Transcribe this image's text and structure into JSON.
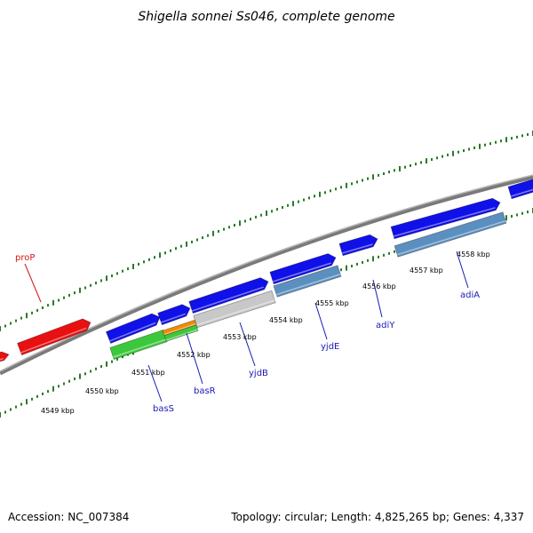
{
  "title": "Shigella sonnei Ss046, complete genome",
  "footer": {
    "accession": "Accession: NC_007384",
    "summary": "Topology: circular; Length: 4,825,265 bp; Genes: 4,337"
  },
  "colors": {
    "forward_gene": "#1010e8",
    "rrna_or_red": "#e81010",
    "steelblue_gene": "#5b8fc0",
    "grey_gene": "#c8c8c8",
    "green_gene": "#3cc83c",
    "orange_gene": "#f08c00",
    "tick": "#2a7a2a",
    "backbone": "#8c8c8c",
    "label_blue": "#1a1ab4",
    "label_red": "#d21414"
  },
  "scale_labels": [
    "4549 kbp",
    "4550 kbp",
    "4551 kbp",
    "4552 kbp",
    "4553 kbp",
    "4554 kbp",
    "4555 kbp",
    "4556 kbp",
    "4557 kbp",
    "4558 kbp"
  ],
  "gene_labels": [
    {
      "name": "proP",
      "color": "label_red"
    },
    {
      "name": "basS",
      "color": "label_blue"
    },
    {
      "name": "basR",
      "color": "label_blue"
    },
    {
      "name": "yjdB",
      "color": "label_blue"
    },
    {
      "name": "yjdE",
      "color": "label_blue"
    },
    {
      "name": "adiY",
      "color": "label_blue"
    },
    {
      "name": "adiA",
      "color": "label_blue"
    }
  ]
}
